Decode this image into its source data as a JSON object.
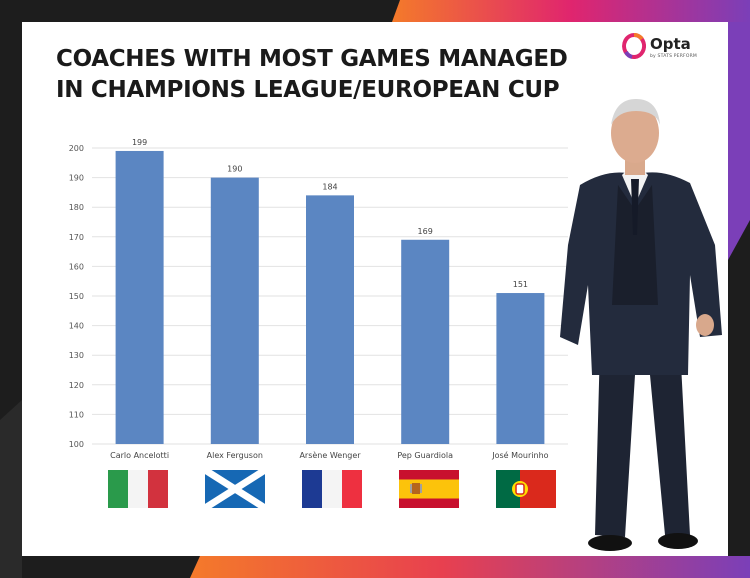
{
  "title_lines": [
    "COACHES WITH MOST GAMES MANAGED",
    "IN CHAMPIONS LEAGUE/EUROPEAN CUP"
  ],
  "logo": {
    "name": "Opta",
    "sub": "by STATS PERFORM",
    "icon": "opta-logo-icon"
  },
  "colors": {
    "bar": "#5b86c2",
    "grid": "#e2e2e2",
    "accent_orange": "#f47a2a",
    "accent_magenta": "#e0256e",
    "accent_purple": "#7b3fb8"
  },
  "chart_data": {
    "type": "bar",
    "categories": [
      "Carlo Ancelotti",
      "Alex Ferguson",
      "Arsène Wenger",
      "Pep Guardiola",
      "José Mourinho"
    ],
    "values": [
      199,
      190,
      184,
      169,
      151
    ],
    "title": "COACHES WITH MOST GAMES MANAGED IN CHAMPIONS LEAGUE/EUROPEAN CUP",
    "xlabel": "",
    "ylabel": "",
    "ylim": [
      100,
      200
    ],
    "yticks": [
      100,
      110,
      120,
      130,
      140,
      150,
      160,
      170,
      180,
      190,
      200
    ],
    "grid": true,
    "data_labels": true
  },
  "flags": [
    {
      "country": "italy",
      "icon": "italy-flag-icon"
    },
    {
      "country": "scotland",
      "icon": "scotland-flag-icon"
    },
    {
      "country": "france",
      "icon": "france-flag-icon"
    },
    {
      "country": "spain",
      "icon": "spain-flag-icon"
    },
    {
      "country": "portugal",
      "icon": "portugal-flag-icon"
    }
  ],
  "photo": {
    "icon": "coach-photo-icon"
  }
}
